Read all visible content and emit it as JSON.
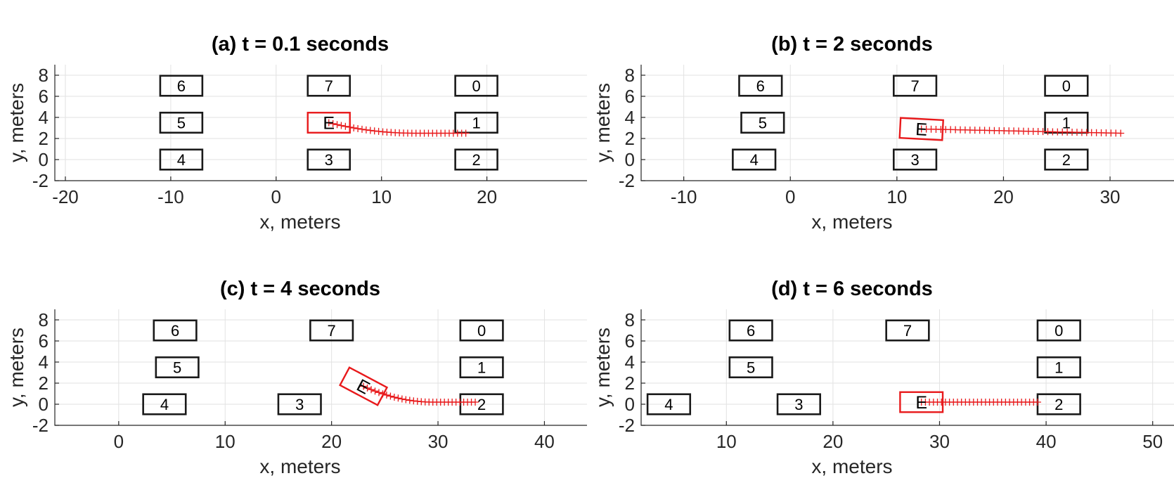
{
  "chart_data": [
    {
      "type": "scatter",
      "title": "(a) t = 0.1 seconds",
      "xlabel": "x, meters",
      "ylabel": "y, meters",
      "xlim": [
        -21,
        29.5
      ],
      "ylim": [
        -2,
        9
      ],
      "xticks": [
        -20,
        -10,
        0,
        10,
        20
      ],
      "yticks": [
        -2,
        0,
        2,
        4,
        6,
        8
      ],
      "grid": true,
      "vehicles": [
        {
          "label": "6",
          "x": -9,
          "y": 7.0,
          "angle": 0
        },
        {
          "label": "7",
          "x": 5,
          "y": 7.0,
          "angle": 0
        },
        {
          "label": "0",
          "x": 19,
          "y": 7.0,
          "angle": 0
        },
        {
          "label": "5",
          "x": -9,
          "y": 3.5,
          "angle": 0
        },
        {
          "label": "1",
          "x": 19,
          "y": 3.5,
          "angle": 0
        },
        {
          "label": "4",
          "x": -9,
          "y": 0.0,
          "angle": 0
        },
        {
          "label": "3",
          "x": 5,
          "y": 0.0,
          "angle": 0
        },
        {
          "label": "2",
          "x": 19,
          "y": 0.0,
          "angle": 0
        }
      ],
      "ego": {
        "label": "E",
        "x": 5,
        "y": 3.5,
        "angle": 0
      },
      "trajectory": {
        "x0": 5,
        "y0": 3.5,
        "x1": 18,
        "y1": 2.5,
        "n": 34,
        "shape": "ease"
      }
    },
    {
      "type": "scatter",
      "title": "(b) t = 2 seconds",
      "xlabel": "x, meters",
      "ylabel": "y, meters",
      "xlim": [
        -14,
        36
      ],
      "ylim": [
        -2,
        9
      ],
      "xticks": [
        -10,
        0,
        10,
        20,
        30
      ],
      "yticks": [
        -2,
        0,
        2,
        4,
        6,
        8
      ],
      "grid": true,
      "vehicles": [
        {
          "label": "6",
          "x": -2.8,
          "y": 7.0,
          "angle": 0
        },
        {
          "label": "7",
          "x": 11.7,
          "y": 7.0,
          "angle": 0
        },
        {
          "label": "0",
          "x": 25.9,
          "y": 7.0,
          "angle": 0
        },
        {
          "label": "5",
          "x": -2.6,
          "y": 3.5,
          "angle": 0
        },
        {
          "label": "1",
          "x": 25.9,
          "y": 3.5,
          "angle": 0
        },
        {
          "label": "4",
          "x": -3.4,
          "y": 0.0,
          "angle": 0
        },
        {
          "label": "3",
          "x": 11.7,
          "y": 0.0,
          "angle": 0
        },
        {
          "label": "2",
          "x": 25.9,
          "y": 0.0,
          "angle": 0
        }
      ],
      "ego": {
        "label": "E",
        "x": 12.3,
        "y": 2.9,
        "angle": -3
      },
      "trajectory": {
        "x0": 12.3,
        "y0": 2.9,
        "x1": 31,
        "y1": 2.5,
        "n": 42,
        "shape": "linear"
      }
    },
    {
      "type": "scatter",
      "title": "(c) t = 4 seconds",
      "xlabel": "x, meters",
      "ylabel": "y, meters",
      "xlim": [
        -6,
        44
      ],
      "ylim": [
        -2,
        9
      ],
      "xticks": [
        0,
        10,
        20,
        30,
        40
      ],
      "yticks": [
        -2,
        0,
        2,
        4,
        6,
        8
      ],
      "grid": true,
      "vehicles": [
        {
          "label": "6",
          "x": 5.3,
          "y": 7.0,
          "angle": 0
        },
        {
          "label": "7",
          "x": 20,
          "y": 7.0,
          "angle": 0
        },
        {
          "label": "0",
          "x": 34.1,
          "y": 7.0,
          "angle": 0
        },
        {
          "label": "5",
          "x": 5.5,
          "y": 3.5,
          "angle": 0
        },
        {
          "label": "1",
          "x": 34.1,
          "y": 3.5,
          "angle": 0
        },
        {
          "label": "4",
          "x": 4.3,
          "y": 0.0,
          "angle": 0
        },
        {
          "label": "3",
          "x": 17,
          "y": 0.0,
          "angle": 0
        },
        {
          "label": "2",
          "x": 34.1,
          "y": 0.0,
          "angle": 0
        }
      ],
      "ego": {
        "label": "E",
        "x": 23,
        "y": 1.7,
        "angle": -28
      },
      "trajectory": {
        "x0": 23,
        "y0": 1.7,
        "x1": 33.5,
        "y1": 0.2,
        "n": 30,
        "shape": "ease"
      }
    },
    {
      "type": "scatter",
      "title": "(d) t = 6 seconds",
      "xlabel": "x, meters",
      "ylabel": "y, meters",
      "xlim": [
        2,
        52
      ],
      "ylim": [
        -2,
        9
      ],
      "xticks": [
        10,
        20,
        30,
        40,
        50
      ],
      "yticks": [
        -2,
        0,
        2,
        4,
        6,
        8
      ],
      "grid": true,
      "vehicles": [
        {
          "label": "6",
          "x": 12.3,
          "y": 7.0,
          "angle": 0
        },
        {
          "label": "7",
          "x": 27,
          "y": 7.0,
          "angle": 0
        },
        {
          "label": "0",
          "x": 41.2,
          "y": 7.0,
          "angle": 0
        },
        {
          "label": "5",
          "x": 12.3,
          "y": 3.5,
          "angle": 0
        },
        {
          "label": "1",
          "x": 41.2,
          "y": 3.5,
          "angle": 0
        },
        {
          "label": "4",
          "x": 4.6,
          "y": 0.0,
          "angle": 0
        },
        {
          "label": "3",
          "x": 16.8,
          "y": 0.0,
          "angle": 0
        },
        {
          "label": "2",
          "x": 41.2,
          "y": 0.0,
          "angle": 0
        }
      ],
      "ego": {
        "label": "E",
        "x": 28.3,
        "y": 0.2,
        "angle": 0
      },
      "trajectory": {
        "x0": 28.3,
        "y0": 0.2,
        "x1": 39.2,
        "y1": 0.2,
        "n": 30,
        "shape": "linear"
      }
    }
  ],
  "colors": {
    "vehicle": "#1a1a1a",
    "ego": "#e8191b",
    "trajectory": "#e8191b",
    "grid": "#e2e2e2",
    "axis": "#262626"
  }
}
